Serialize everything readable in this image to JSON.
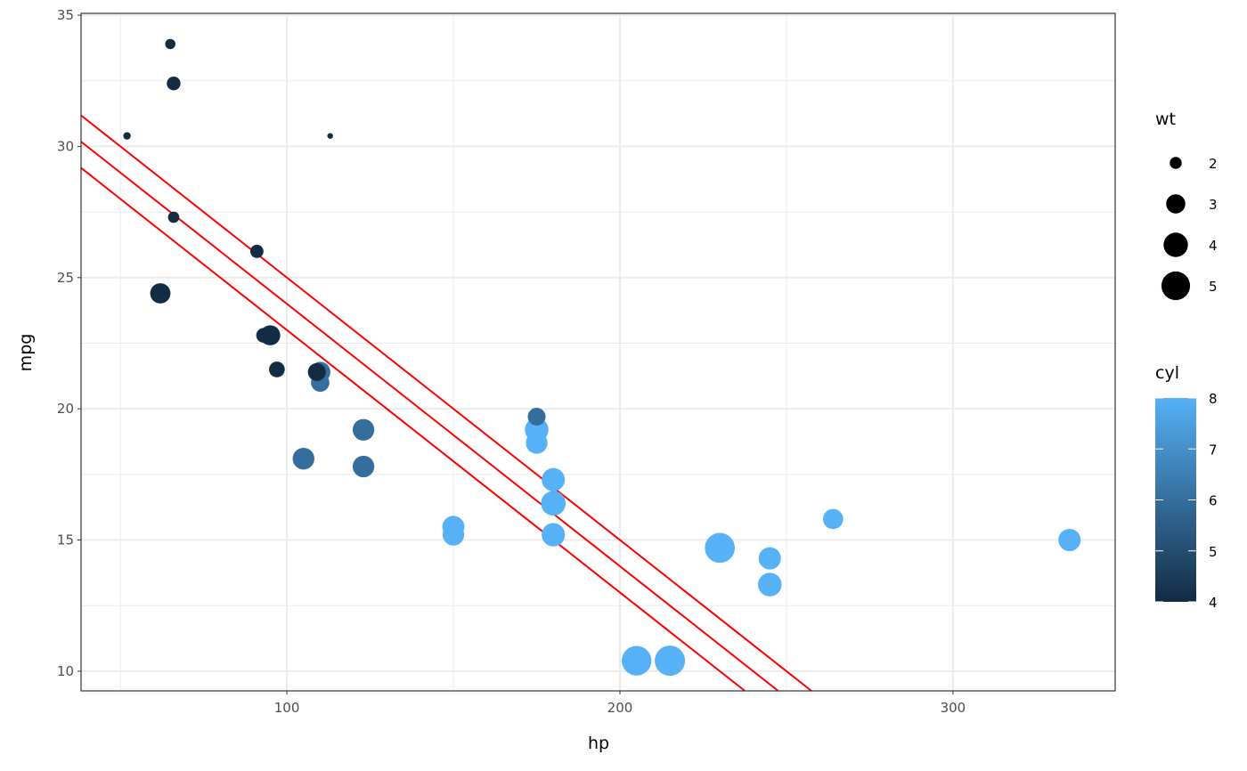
{
  "chart_data": {
    "type": "scatter",
    "xlabel": "hp",
    "ylabel": "mpg",
    "xlim": [
      38.2,
      348.7
    ],
    "ylim": [
      9.25,
      35.07
    ],
    "x_ticks": [
      100,
      200,
      300
    ],
    "y_ticks": [
      10,
      15,
      20,
      25,
      30,
      35
    ],
    "grid": true,
    "points": [
      {
        "hp": 110,
        "mpg": 21,
        "wt": 2.62,
        "cyl": 6
      },
      {
        "hp": 110,
        "mpg": 21,
        "wt": 2.875,
        "cyl": 6
      },
      {
        "hp": 93,
        "mpg": 22.8,
        "wt": 2.32,
        "cyl": 4
      },
      {
        "hp": 110,
        "mpg": 21.4,
        "wt": 3.215,
        "cyl": 6
      },
      {
        "hp": 175,
        "mpg": 18.7,
        "wt": 3.44,
        "cyl": 8
      },
      {
        "hp": 105,
        "mpg": 18.1,
        "wt": 3.46,
        "cyl": 6
      },
      {
        "hp": 245,
        "mpg": 14.3,
        "wt": 3.57,
        "cyl": 8
      },
      {
        "hp": 62,
        "mpg": 24.4,
        "wt": 3.19,
        "cyl": 4
      },
      {
        "hp": 95,
        "mpg": 22.8,
        "wt": 3.15,
        "cyl": 4
      },
      {
        "hp": 123,
        "mpg": 19.2,
        "wt": 3.44,
        "cyl": 6
      },
      {
        "hp": 123,
        "mpg": 17.8,
        "wt": 3.44,
        "cyl": 6
      },
      {
        "hp": 180,
        "mpg": 16.4,
        "wt": 4.07,
        "cyl": 8
      },
      {
        "hp": 180,
        "mpg": 17.3,
        "wt": 3.73,
        "cyl": 8
      },
      {
        "hp": 180,
        "mpg": 15.2,
        "wt": 3.78,
        "cyl": 8
      },
      {
        "hp": 205,
        "mpg": 10.4,
        "wt": 5.25,
        "cyl": 8
      },
      {
        "hp": 215,
        "mpg": 10.4,
        "wt": 5.424,
        "cyl": 8
      },
      {
        "hp": 230,
        "mpg": 14.7,
        "wt": 5.345,
        "cyl": 8
      },
      {
        "hp": 66,
        "mpg": 32.4,
        "wt": 2.2,
        "cyl": 4
      },
      {
        "hp": 52,
        "mpg": 30.4,
        "wt": 1.615,
        "cyl": 4
      },
      {
        "hp": 65,
        "mpg": 33.9,
        "wt": 1.835,
        "cyl": 4
      },
      {
        "hp": 97,
        "mpg": 21.5,
        "wt": 2.465,
        "cyl": 4
      },
      {
        "hp": 150,
        "mpg": 15.5,
        "wt": 3.52,
        "cyl": 8
      },
      {
        "hp": 150,
        "mpg": 15.2,
        "wt": 3.435,
        "cyl": 8
      },
      {
        "hp": 245,
        "mpg": 13.3,
        "wt": 3.84,
        "cyl": 8
      },
      {
        "hp": 175,
        "mpg": 19.2,
        "wt": 3.845,
        "cyl": 8
      },
      {
        "hp": 66,
        "mpg": 27.3,
        "wt": 1.935,
        "cyl": 4
      },
      {
        "hp": 91,
        "mpg": 26,
        "wt": 2.14,
        "cyl": 4
      },
      {
        "hp": 113,
        "mpg": 30.4,
        "wt": 1.513,
        "cyl": 4
      },
      {
        "hp": 264,
        "mpg": 15.8,
        "wt": 3.17,
        "cyl": 8
      },
      {
        "hp": 175,
        "mpg": 19.7,
        "wt": 2.77,
        "cyl": 6
      },
      {
        "hp": 335,
        "mpg": 15,
        "wt": 3.57,
        "cyl": 8
      },
      {
        "hp": 109,
        "mpg": 21.4,
        "wt": 2.78,
        "cyl": 4
      }
    ],
    "lines": [
      {
        "intercept": 35,
        "slope": -0.1,
        "color": "#FF0000"
      },
      {
        "intercept": 34,
        "slope": -0.1,
        "color": "#FF0000"
      },
      {
        "intercept": 33,
        "slope": -0.1,
        "color": "#FF0000"
      }
    ],
    "size_legend": {
      "title": "wt",
      "breaks": [
        2,
        3,
        4,
        5
      ]
    },
    "color_legend": {
      "title": "cyl",
      "breaks": [
        4,
        5,
        6,
        7,
        8
      ],
      "low": "#132B43",
      "high": "#56B1F7"
    }
  }
}
